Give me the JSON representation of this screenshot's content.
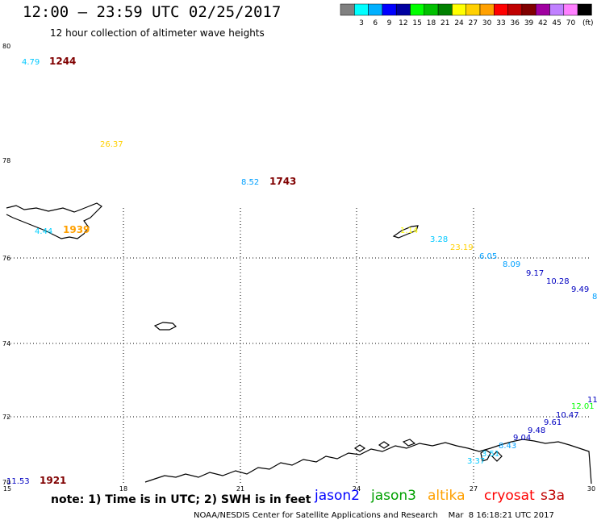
{
  "header": {
    "title": "12:00 – 23:59 UTC 02/25/2017",
    "subtitle": "12 hour collection of altimeter wave heights"
  },
  "legend": {
    "colors": [
      "#808080",
      "#00ffff",
      "#00b0ff",
      "#0000ff",
      "#0000a0",
      "#00ff00",
      "#00c000",
      "#008000",
      "#ffff00",
      "#ffd000",
      "#ffa000",
      "#ff0000",
      "#c00000",
      "#800000",
      "#a000a0",
      "#c080ff",
      "#ff80ff",
      "#000000"
    ],
    "labels": [
      "3",
      "6",
      "9",
      "12",
      "15",
      "18",
      "21",
      "24",
      "27",
      "30",
      "33",
      "36",
      "39",
      "42",
      "45",
      "70"
    ],
    "unit": "(ft)"
  },
  "axes": {
    "lat_labels": [
      "80",
      "78",
      "76",
      "74",
      "72",
      "70"
    ],
    "lon_labels": [
      "15",
      "18",
      "21",
      "24",
      "27",
      "30"
    ]
  },
  "observations": [
    {
      "text": "4.79",
      "color": "#00c8ff"
    },
    {
      "text": "1244",
      "color": "#800000"
    },
    {
      "text": "26.37",
      "color": "#ffd000"
    },
    {
      "text": "8.52",
      "color": "#00a0ff"
    },
    {
      "text": "1743",
      "color": "#800000"
    },
    {
      "text": "4.44",
      "color": "#00d0ff"
    },
    {
      "text": "1939",
      "color": "#ffa000"
    },
    {
      "text": "1.14",
      "color": "#ffff00"
    },
    {
      "text": "3.28",
      "color": "#00c8ff"
    },
    {
      "text": "23.19",
      "color": "#ffd000"
    },
    {
      "text": "6.05",
      "color": "#00a0ff"
    },
    {
      "text": "8.09",
      "color": "#00a0ff"
    },
    {
      "text": "9.17",
      "color": "#0000c0"
    },
    {
      "text": "10.28",
      "color": "#0000c0"
    },
    {
      "text": "9.49",
      "color": "#0000c0"
    },
    {
      "text": "8",
      "color": "#00a0ff"
    },
    {
      "text": "11",
      "color": "#0000c0"
    },
    {
      "text": "12.01",
      "color": "#00ff00"
    },
    {
      "text": "10.47",
      "color": "#0000c0"
    },
    {
      "text": "9.61",
      "color": "#0000c0"
    },
    {
      "text": "9.48",
      "color": "#0000c0"
    },
    {
      "text": "9.04",
      "color": "#0000c0"
    },
    {
      "text": "8.43",
      "color": "#00a0ff"
    },
    {
      "text": "3.51",
      "color": "#00c8ff"
    },
    {
      "text": "3.37",
      "color": "#00c8ff"
    },
    {
      "text": "11.53",
      "color": "#0000c0"
    },
    {
      "text": "1921",
      "color": "#800000"
    }
  ],
  "note": "note:  1) Time is in UTC;  2) SWH is in feet",
  "satellites": [
    {
      "name": "jason2",
      "color": "#0000ff"
    },
    {
      "name": "jason3",
      "color": "#00a000"
    },
    {
      "name": "altika",
      "color": "#ffa000"
    },
    {
      "name": "cryosat",
      "color": "#ff0000"
    },
    {
      "name": "s3a",
      "color": "#c00000"
    }
  ],
  "footer": "NOAA/NESDIS Center for Satellite Applications and Research    Mar  8 16:18:21 UTC 2017"
}
